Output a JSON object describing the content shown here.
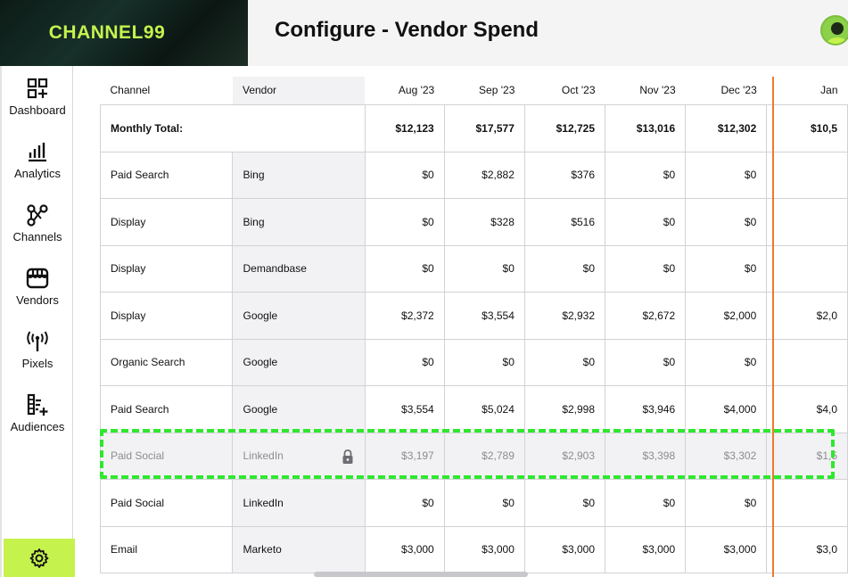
{
  "brand": {
    "logo": "CHANNEL99",
    "accent": "#c6f24e"
  },
  "header": {
    "title": "Configure - Vendor Spend"
  },
  "sidebar": {
    "items": [
      {
        "label": "Dashboard",
        "icon": "dashboard-icon"
      },
      {
        "label": "Analytics",
        "icon": "analytics-icon"
      },
      {
        "label": "Channels",
        "icon": "channels-icon"
      },
      {
        "label": "Vendors",
        "icon": "vendors-icon"
      },
      {
        "label": "Pixels",
        "icon": "pixels-icon"
      },
      {
        "label": "Audiences",
        "icon": "audiences-icon"
      }
    ],
    "settings_icon": "gear-icon"
  },
  "table": {
    "headers": {
      "channel": "Channel",
      "vendor": "Vendor",
      "months": [
        "Aug '23",
        "Sep '23",
        "Oct '23",
        "Nov '23",
        "Dec '23",
        "Jan"
      ]
    },
    "total": {
      "label": "Monthly Total:",
      "values": [
        "$12,123",
        "$17,577",
        "$12,725",
        "$13,016",
        "$12,302",
        "$10,5"
      ]
    },
    "rows": [
      {
        "channel": "Paid Search",
        "vendor": "Bing",
        "values": [
          "$0",
          "$2,882",
          "$376",
          "$0",
          "$0",
          ""
        ]
      },
      {
        "channel": "Display",
        "vendor": "Bing",
        "values": [
          "$0",
          "$328",
          "$516",
          "$0",
          "$0",
          ""
        ]
      },
      {
        "channel": "Display",
        "vendor": "Demandbase",
        "values": [
          "$0",
          "$0",
          "$0",
          "$0",
          "$0",
          ""
        ]
      },
      {
        "channel": "Display",
        "vendor": "Google",
        "values": [
          "$2,372",
          "$3,554",
          "$2,932",
          "$2,672",
          "$2,000",
          "$2,0"
        ]
      },
      {
        "channel": "Organic Search",
        "vendor": "Google",
        "values": [
          "$0",
          "$0",
          "$0",
          "$0",
          "$0",
          ""
        ]
      },
      {
        "channel": "Paid Search",
        "vendor": "Google",
        "values": [
          "$3,554",
          "$5,024",
          "$2,998",
          "$3,946",
          "$4,000",
          "$4,0"
        ]
      },
      {
        "channel": "Paid Social",
        "vendor": "LinkedIn",
        "values": [
          "$3,197",
          "$2,789",
          "$2,903",
          "$3,398",
          "$3,302",
          "$1,5"
        ],
        "locked": true
      },
      {
        "channel": "Paid Social",
        "vendor": "LinkedIn",
        "values": [
          "$0",
          "$0",
          "$0",
          "$0",
          "$0",
          ""
        ]
      },
      {
        "channel": "Email",
        "vendor": "Marketo",
        "values": [
          "$3,000",
          "$3,000",
          "$3,000",
          "$3,000",
          "$3,000",
          "$3,0"
        ]
      }
    ]
  }
}
